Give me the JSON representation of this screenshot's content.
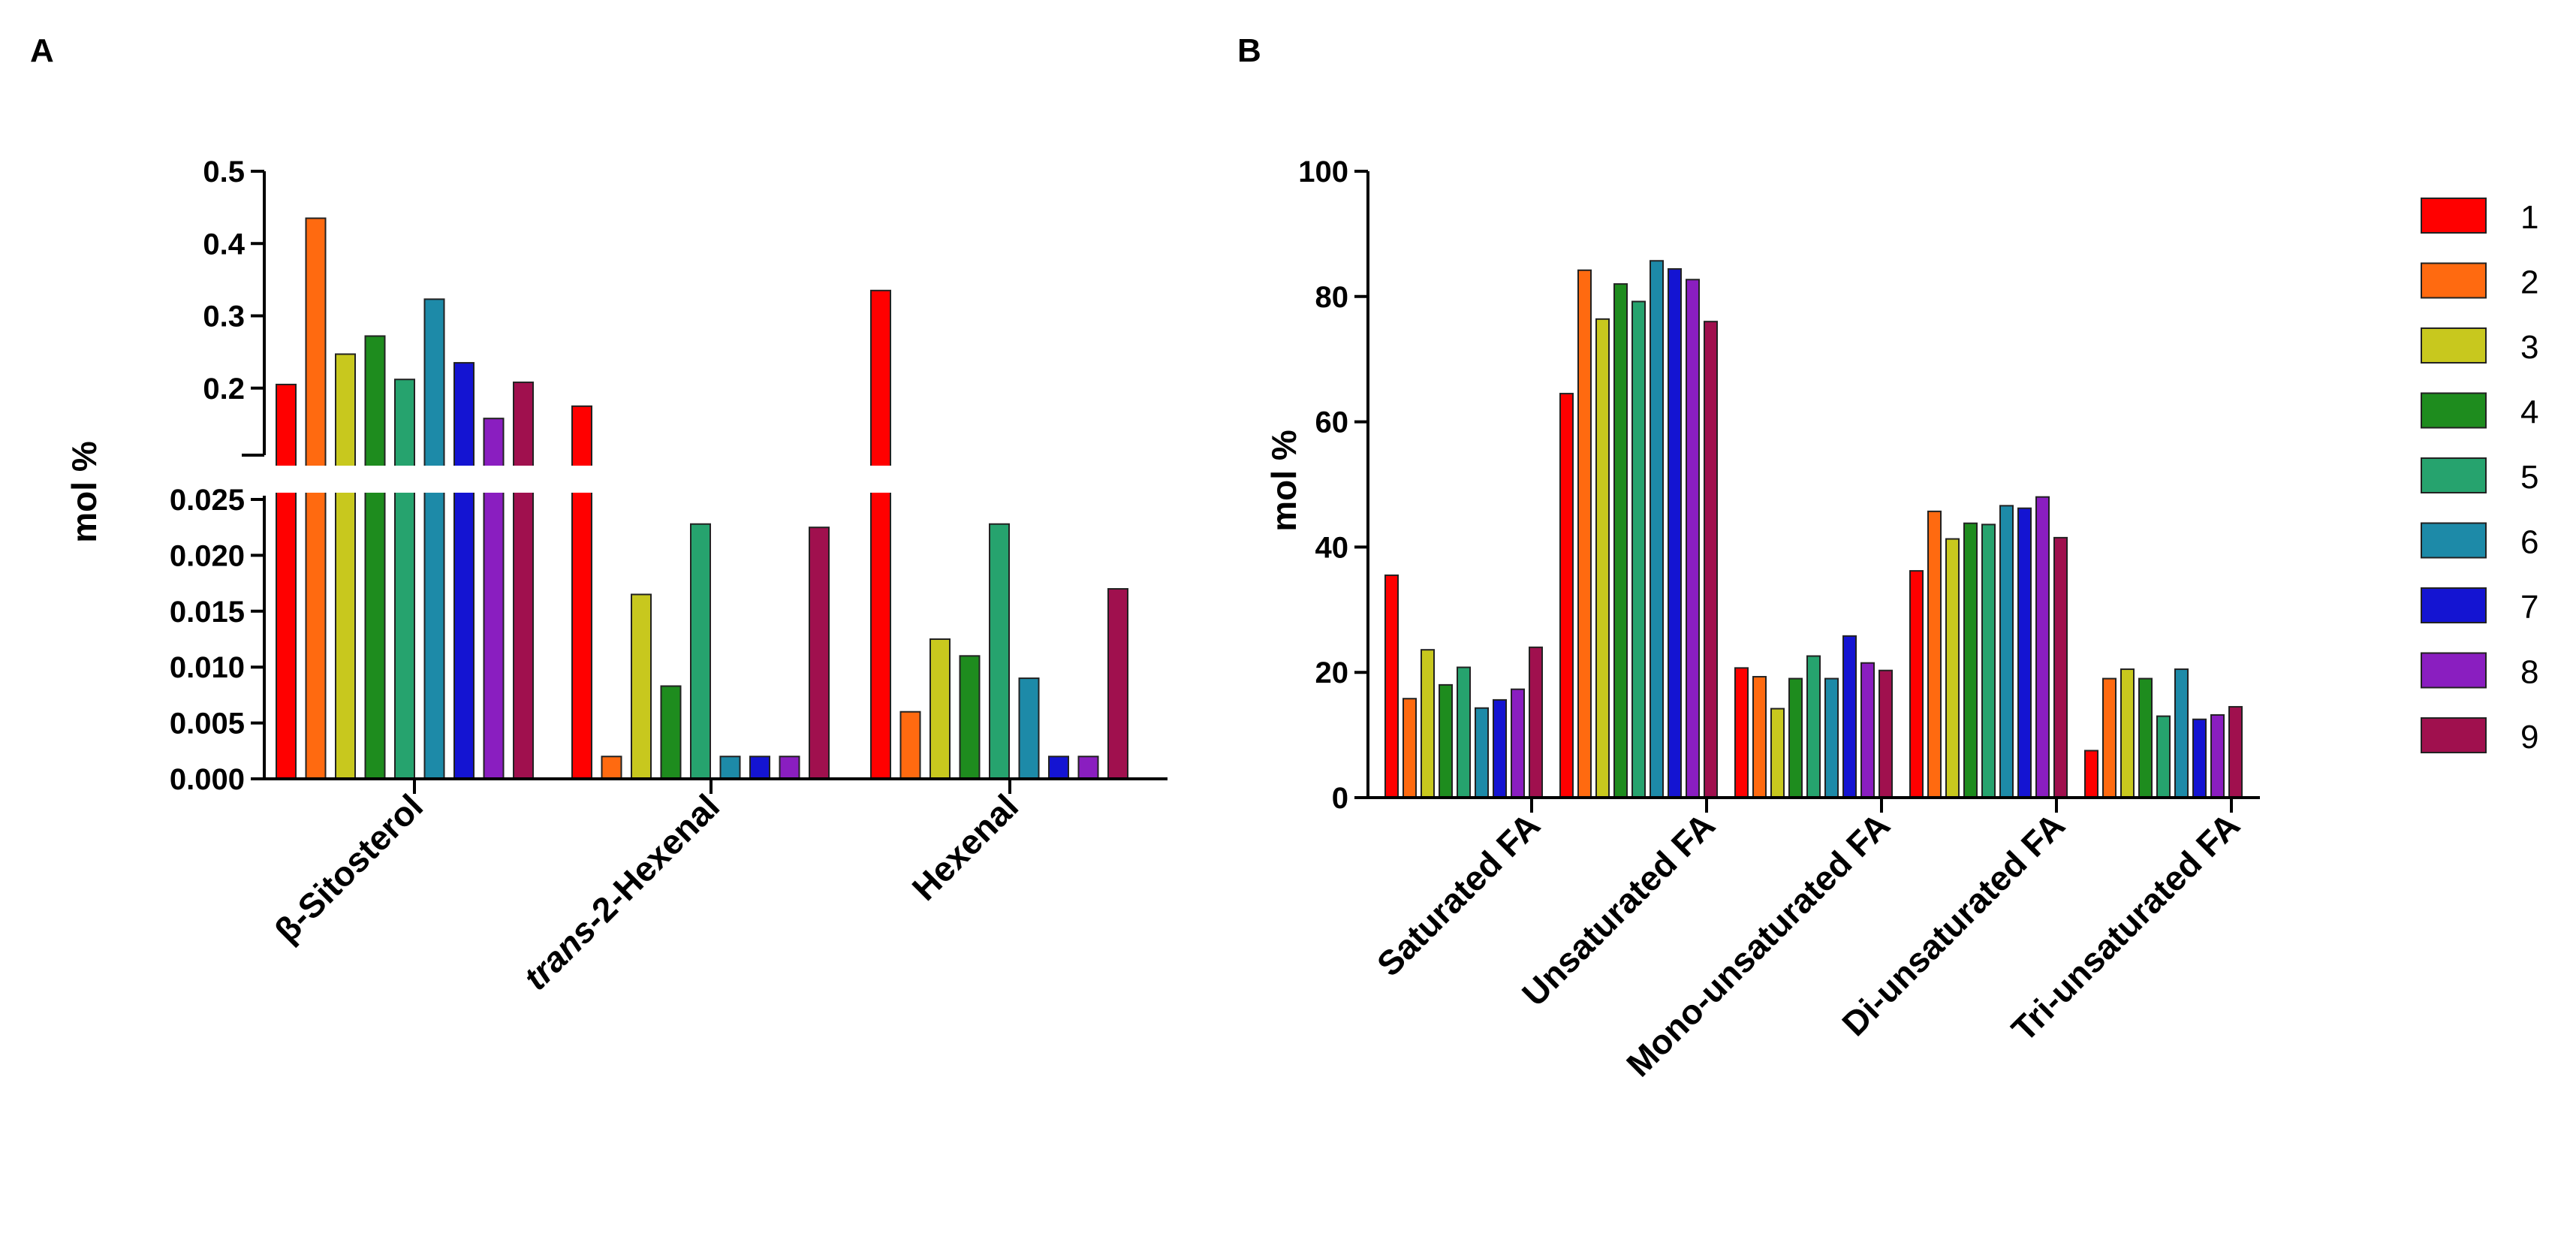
{
  "colors": [
    "#ff0000",
    "#ff6a10",
    "#c8c81e",
    "#1e8c1e",
    "#26a36e",
    "#1d8aa8",
    "#1414d2",
    "#8a1ec0",
    "#a0104e"
  ],
  "chart_data": [
    {
      "panel": "A",
      "type": "bar",
      "axis_break": true,
      "ylabel": "mol %",
      "categories": [
        "β-Sitosterol",
        "trans-2-Hexenal",
        "Hexenal"
      ],
      "category_label_parts": [
        [
          {
            "text": "β-Sitosterol",
            "italic": false
          }
        ],
        [
          {
            "text": "trans",
            "italic": true
          },
          {
            "text": "-2-Hexenal",
            "italic": false
          }
        ],
        [
          {
            "text": "Hexenal",
            "italic": false
          }
        ]
      ],
      "series_names": [
        "1",
        "2",
        "3",
        "4",
        "5",
        "6",
        "7",
        "8",
        "9"
      ],
      "values": [
        [
          0.205,
          0.435,
          0.247,
          0.272,
          0.212,
          0.323,
          0.235,
          0.158,
          0.208
        ],
        [
          0.175,
          0.002,
          0.0165,
          0.0083,
          0.0228,
          0.002,
          0.002,
          0.002,
          0.0225
        ],
        [
          0.335,
          0.006,
          0.0125,
          0.011,
          0.0228,
          0.009,
          0.002,
          0.002,
          0.017
        ]
      ],
      "lower_ylim": [
        0,
        0.025
      ],
      "upper_ylim": [
        0.1,
        0.5
      ],
      "lower_ticks": [
        "0.000",
        "0.005",
        "0.010",
        "0.015",
        "0.020",
        "0.025"
      ],
      "upper_ticks": [
        "0.2",
        "0.3",
        "0.4",
        "0.5"
      ]
    },
    {
      "panel": "B",
      "type": "bar",
      "ylabel": "mol %",
      "ylim": [
        0,
        100
      ],
      "yticks": [
        "0",
        "20",
        "40",
        "60",
        "80",
        "100"
      ],
      "categories": [
        "Saturated FA",
        "Unsaturated FA",
        "Mono-unsaturated FA",
        "Di-unsaturated FA",
        "Tri-unsaturated FA"
      ],
      "series_names": [
        "1",
        "2",
        "3",
        "4",
        "5",
        "6",
        "7",
        "8",
        "9"
      ],
      "values": [
        [
          35.5,
          15.8,
          23.6,
          18.0,
          20.8,
          14.3,
          15.6,
          17.3,
          24.0
        ],
        [
          64.5,
          84.2,
          76.4,
          82.0,
          79.2,
          85.7,
          84.4,
          82.7,
          76.0
        ],
        [
          20.7,
          19.3,
          14.2,
          19.0,
          22.6,
          19.0,
          25.8,
          21.5,
          20.3
        ],
        [
          36.2,
          45.7,
          41.3,
          43.8,
          43.6,
          46.6,
          46.2,
          48.0,
          41.5
        ],
        [
          7.5,
          19.0,
          20.5,
          19.0,
          13.0,
          20.5,
          12.5,
          13.2,
          14.5
        ]
      ]
    }
  ],
  "legend": {
    "items": [
      "1",
      "2",
      "3",
      "4",
      "5",
      "6",
      "7",
      "8",
      "9"
    ]
  }
}
